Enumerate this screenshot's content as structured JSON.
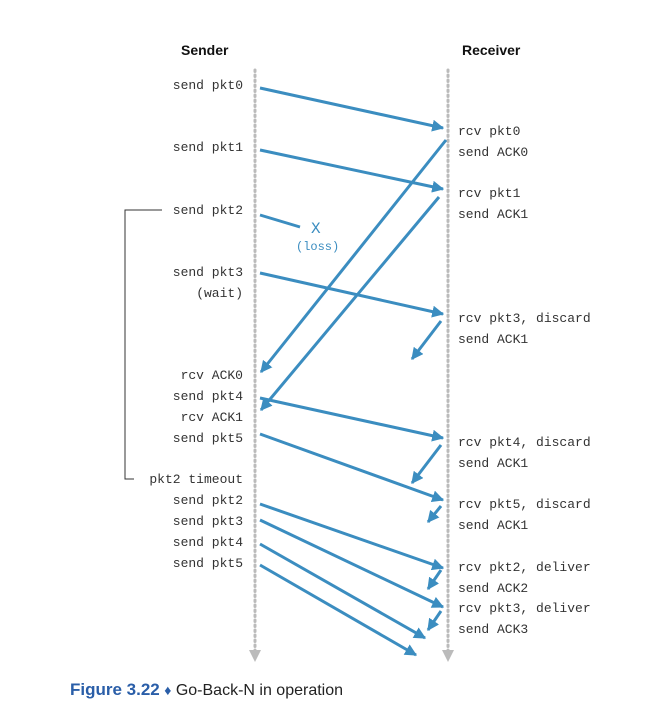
{
  "sender_title": "Sender",
  "receiver_title": "Receiver",
  "sender_events": [
    "send pkt0",
    "send pkt1",
    "send pkt2",
    "send pkt3",
    "(wait)",
    "rcv ACK0",
    "send pkt4",
    "rcv ACK1",
    "send pkt5",
    "pkt2 timeout",
    "send pkt2",
    "send pkt3",
    "send pkt4",
    "send pkt5"
  ],
  "receiver_events": [
    "rcv pkt0",
    "send ACK0",
    "rcv pkt1",
    "send ACK1",
    "rcv pkt3, discard",
    "send ACK1",
    "rcv pkt4, discard",
    "send ACK1",
    "rcv pkt5, discard",
    "send ACK1",
    "rcv pkt2, deliver",
    "send ACK2",
    "rcv pkt3, deliver",
    "send ACK3"
  ],
  "loss": {
    "mark": "X",
    "label": "(loss)"
  },
  "caption": {
    "figure_number": "Figure 3.22",
    "separator": "♦",
    "text": "Go-Back-N in operation"
  },
  "colors": {
    "arrow": "#3b8dc0",
    "timeline": "#bbbbbb",
    "bracket": "#333333",
    "figure_number": "#2a5ea8"
  }
}
